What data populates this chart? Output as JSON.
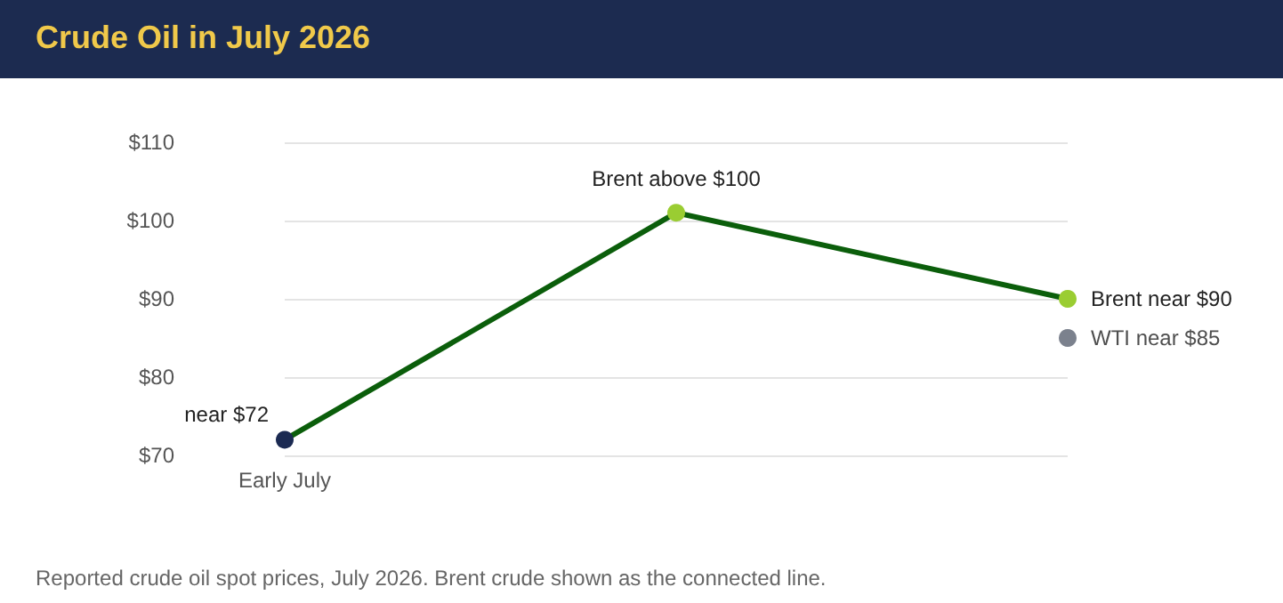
{
  "chart_data": {
    "type": "line",
    "title": "Crude Oil in July 2026",
    "categories": [
      "Early July",
      null,
      null
    ],
    "series": [
      {
        "color": "#0b5e0b",
        "colors": [
          "#1b2a52",
          "#9acd32",
          "#9acd32"
        ],
        "values": [
          72,
          101,
          90
        ],
        "value_labels": [
          "near $72",
          "Brent above $100",
          "Brent near $90"
        ]
      },
      {
        "type": "scatter",
        "color": "#5a6270",
        "values": [
          null,
          null,
          85
        ],
        "value_labels": [
          null,
          null,
          "WTI near $85"
        ]
      }
    ],
    "ylim": [
      70,
      110
    ],
    "yticks": [
      {
        "value": 70,
        "label": "$70"
      },
      {
        "value": 80,
        "label": "$80"
      },
      {
        "value": 90,
        "label": "$90"
      },
      {
        "value": 100,
        "label": "$100"
      },
      {
        "value": 110,
        "label": "$110"
      }
    ],
    "grid": "y",
    "marker": "circle",
    "annotations": [
      "Reported crude oil spot prices, July 2026. Brent crude shown as the connected line."
    ]
  }
}
